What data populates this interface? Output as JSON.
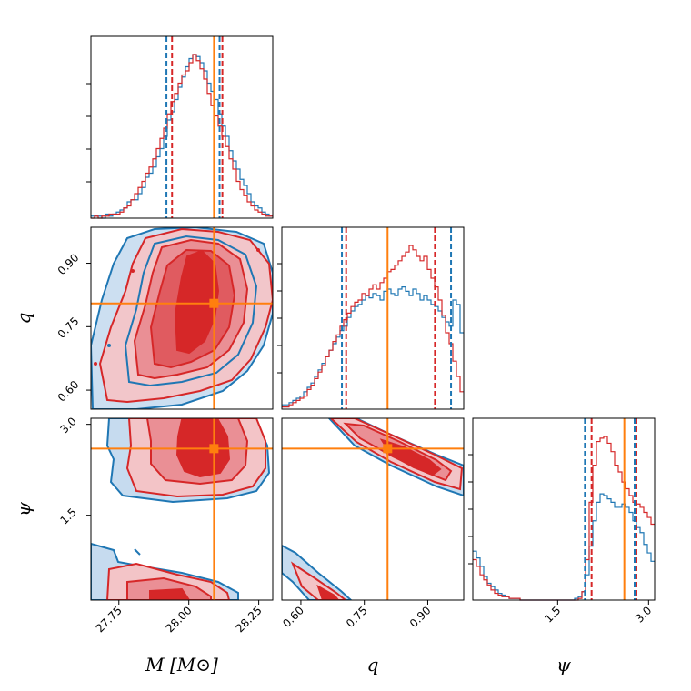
{
  "chart_data": {
    "type": "corner",
    "parameters": [
      "M",
      "q",
      "ψ"
    ],
    "axis_labels": {
      "x": [
        "M [M⊙]",
        "q",
        "ψ"
      ],
      "y": [
        "",
        "q",
        "ψ"
      ]
    },
    "ranges": {
      "M": [
        27.65,
        28.3
      ],
      "q": [
        0.555,
        0.985
      ],
      "psi": [
        0.1,
        3.1
      ]
    },
    "ticks": {
      "M": {
        "values": [
          27.75,
          28.0,
          28.25
        ],
        "labels": [
          "27.75",
          "28.00",
          "28.25"
        ]
      },
      "q": {
        "values": [
          0.6,
          0.75,
          0.9
        ],
        "labels": [
          "0.60",
          "0.75",
          "0.90"
        ]
      },
      "psi": {
        "values": [
          1.5,
          3.0
        ],
        "labels": [
          "1.5",
          "3.0"
        ]
      }
    },
    "truth": {
      "M": 28.09,
      "q": 0.805,
      "psi": 2.6
    },
    "series": [
      {
        "name": "blue",
        "color": "#1f77b4",
        "fill": "#c6dbef",
        "quantiles": {
          "M": [
            27.92,
            28.11
          ],
          "q": [
            0.697,
            0.955
          ],
          "psi": [
            1.95,
            2.77
          ]
        },
        "hist": {
          "M": [
            1,
            1,
            1,
            0,
            2,
            1,
            2,
            3,
            4,
            5,
            8,
            9,
            9,
            12,
            15,
            20,
            22,
            25,
            30,
            34,
            40,
            48,
            52,
            58,
            64,
            69,
            74,
            78,
            80,
            79,
            76,
            72,
            66,
            62,
            58,
            51,
            45,
            40,
            33,
            28,
            24,
            19,
            16,
            12,
            8,
            6,
            5,
            3,
            2,
            1
          ],
          "q": [
            2,
            2,
            3,
            4,
            5,
            6,
            8,
            10,
            12,
            15,
            18,
            21,
            24,
            27,
            30,
            33,
            36,
            38,
            42,
            45,
            47,
            48,
            50,
            52,
            51,
            53,
            52,
            50,
            54,
            55,
            53,
            52,
            55,
            56,
            54,
            52,
            55,
            53,
            50,
            52,
            50,
            48,
            47,
            45,
            42,
            40,
            38,
            50,
            48,
            35
          ],
          "psi": [
            29,
            25,
            20,
            14,
            10,
            8,
            6,
            4,
            3,
            2,
            1,
            1,
            1,
            0,
            0,
            0,
            0,
            0,
            0,
            0,
            0,
            0,
            0,
            0,
            0,
            0,
            0,
            0,
            1,
            2,
            5,
            15,
            32,
            47,
            58,
            63,
            62,
            60,
            58,
            55,
            55,
            57,
            55,
            52,
            47,
            43,
            40,
            33,
            28,
            23
          ]
        }
      },
      {
        "name": "red",
        "color": "#d62728",
        "fill": "#f3c4c7",
        "quantiles": {
          "M": [
            27.94,
            28.12
          ],
          "q": [
            0.707,
            0.917
          ],
          "psi": [
            2.06,
            2.8
          ]
        },
        "hist": {
          "M": [
            0,
            1,
            0,
            1,
            1,
            2,
            2,
            2,
            3,
            5,
            6,
            9,
            12,
            15,
            18,
            22,
            25,
            29,
            34,
            39,
            44,
            51,
            57,
            61,
            66,
            70,
            72,
            76,
            80,
            77,
            73,
            68,
            61,
            55,
            50,
            45,
            40,
            35,
            29,
            24,
            18,
            14,
            11,
            8,
            6,
            4,
            3,
            2,
            1,
            1
          ],
          "q": [
            1,
            1,
            2,
            3,
            4,
            5,
            6,
            9,
            11,
            14,
            17,
            20,
            24,
            27,
            31,
            34,
            38,
            41,
            44,
            47,
            49,
            50,
            53,
            52,
            55,
            57,
            55,
            58,
            60,
            63,
            64,
            66,
            68,
            70,
            72,
            75,
            73,
            70,
            68,
            70,
            64,
            60,
            56,
            50,
            43,
            35,
            30,
            22,
            15,
            8
          ],
          "psi": [
            24,
            20,
            15,
            12,
            9,
            6,
            4,
            3,
            2,
            2,
            1,
            1,
            1,
            0,
            0,
            0,
            0,
            0,
            0,
            0,
            0,
            0,
            0,
            0,
            0,
            0,
            0,
            0,
            0,
            1,
            5,
            24,
            58,
            80,
            94,
            96,
            97,
            93,
            88,
            80,
            76,
            70,
            66,
            62,
            58,
            57,
            55,
            52,
            49,
            45
          ]
        }
      }
    ]
  }
}
